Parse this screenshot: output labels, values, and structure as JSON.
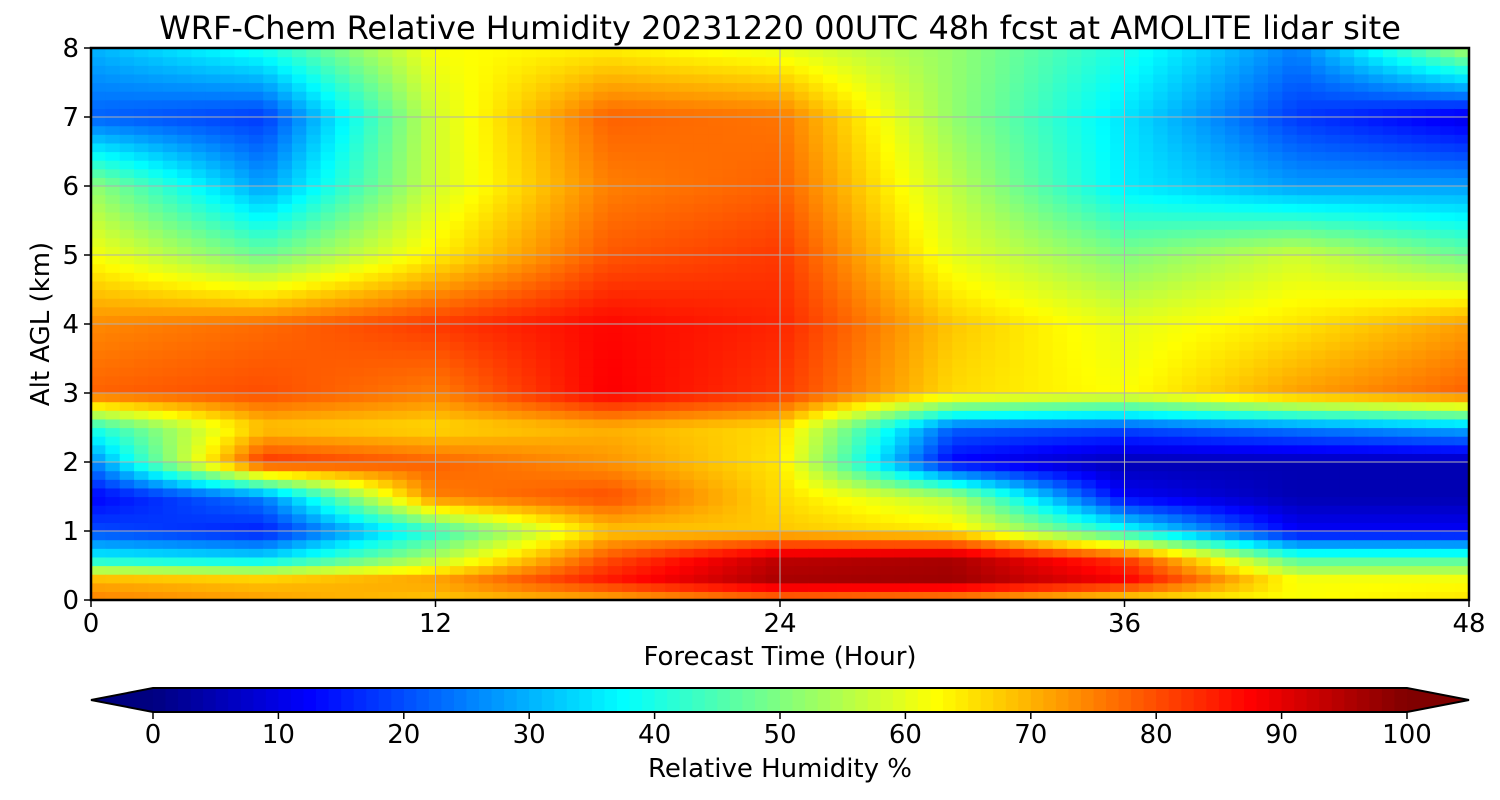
{
  "chart_data": {
    "type": "heatmap",
    "title": "WRF-Chem Relative Humidity 20231220 00UTC 48h fcst at AMOLITE lidar site",
    "xlabel": "Forecast Time (Hour)",
    "ylabel": "Alt AGL (km)",
    "xlim": [
      0,
      48
    ],
    "ylim": [
      0,
      8
    ],
    "x_ticks": [
      "0",
      "12",
      "24",
      "36",
      "48"
    ],
    "y_ticks": [
      "0",
      "1",
      "2",
      "3",
      "4",
      "5",
      "6",
      "7",
      "8"
    ],
    "grid": true,
    "colorbar": {
      "label": "Relative Humidity %",
      "range": [
        0,
        100
      ],
      "extend": "both",
      "colormap": "jet",
      "ticks": [
        "0",
        "10",
        "20",
        "30",
        "40",
        "50",
        "60",
        "70",
        "80",
        "90",
        "100"
      ]
    },
    "x": [
      0,
      6,
      12,
      18,
      24,
      30,
      36,
      42,
      48
    ],
    "y": [
      0,
      0.3,
      0.6,
      1,
      1.5,
      2,
      2.5,
      3,
      4,
      5,
      6,
      7,
      8
    ],
    "z": [
      [
        75,
        72,
        68,
        70,
        75,
        72,
        65,
        62,
        65
      ],
      [
        70,
        68,
        72,
        85,
        96,
        97,
        88,
        62,
        62
      ],
      [
        38,
        35,
        55,
        80,
        94,
        96,
        82,
        45,
        45
      ],
      [
        20,
        15,
        42,
        68,
        68,
        65,
        40,
        12,
        12
      ],
      [
        12,
        25,
        75,
        80,
        66,
        55,
        12,
        5,
        5
      ],
      [
        25,
        83,
        78,
        73,
        65,
        12,
        5,
        5,
        5
      ],
      [
        40,
        68,
        66,
        70,
        66,
        22,
        20,
        25,
        30
      ],
      [
        78,
        80,
        75,
        88,
        82,
        66,
        62,
        72,
        78
      ],
      [
        74,
        77,
        82,
        87,
        84,
        68,
        60,
        65,
        72
      ],
      [
        62,
        48,
        64,
        79,
        82,
        60,
        50,
        58,
        48
      ],
      [
        52,
        28,
        58,
        75,
        78,
        56,
        36,
        28,
        28
      ],
      [
        22,
        18,
        58,
        78,
        76,
        52,
        35,
        18,
        10
      ],
      [
        30,
        40,
        62,
        64,
        60,
        52,
        40,
        25,
        55
      ]
    ]
  }
}
